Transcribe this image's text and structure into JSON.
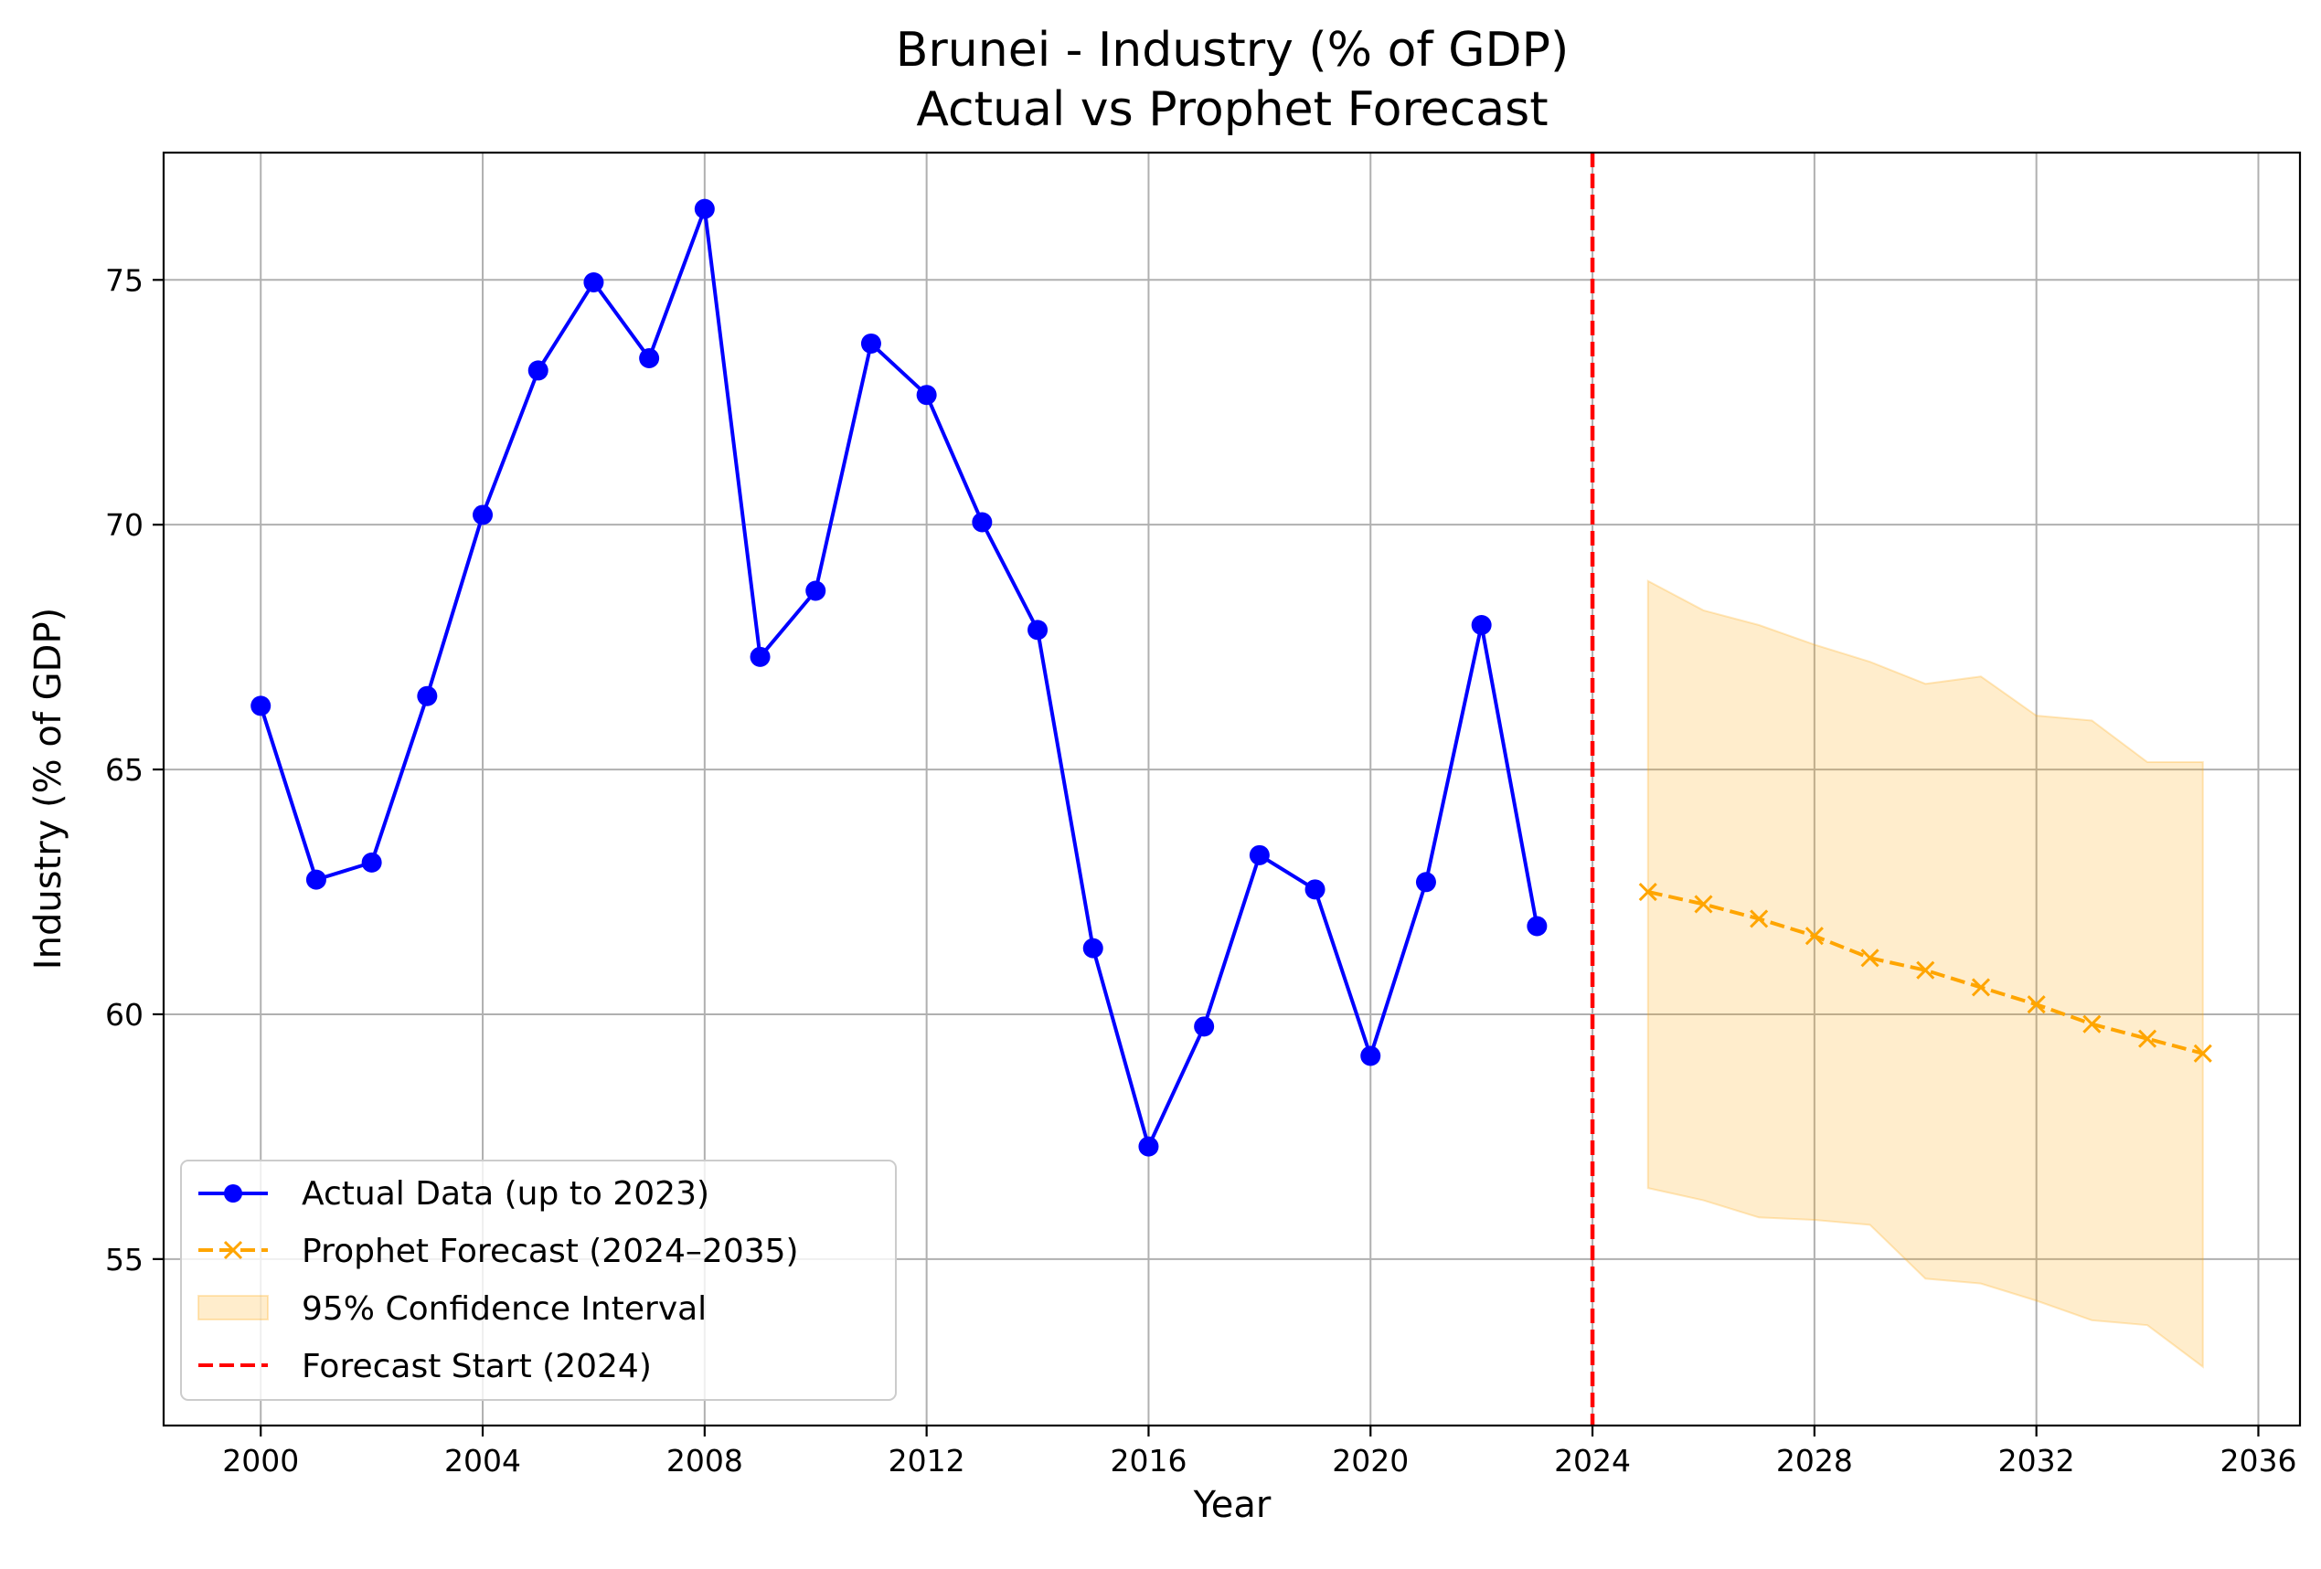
{
  "chart_data": {
    "type": "line",
    "title": "Brunei - Industry (% of GDP)",
    "subtitle": "Actual vs Prophet Forecast",
    "xlabel": "Year",
    "ylabel": "Industry (% of GDP)",
    "xlim": [
      1998.25,
      2036.75
    ],
    "ylim": [
      51.6,
      77.6
    ],
    "xticks": [
      2000,
      2004,
      2008,
      2012,
      2016,
      2020,
      2024,
      2028,
      2032,
      2036
    ],
    "yticks": [
      55,
      60,
      65,
      70,
      75
    ],
    "grid": true,
    "legend_position": "bottom-left",
    "series": [
      {
        "name": "Actual Data (up to 2023)",
        "color": "#0000ff",
        "style": "solid",
        "marker": "circle",
        "x": [
          2000,
          2001,
          2002,
          2003,
          2004,
          2005,
          2006,
          2007,
          2008,
          2009,
          2010,
          2011,
          2012,
          2013,
          2014,
          2015,
          2016,
          2017,
          2018,
          2019,
          2020,
          2021,
          2022,
          2023
        ],
        "y": [
          66.3,
          62.75,
          63.1,
          66.5,
          70.2,
          73.15,
          74.95,
          73.4,
          76.45,
          67.3,
          68.65,
          73.7,
          72.65,
          70.05,
          67.85,
          61.35,
          57.3,
          59.75,
          63.25,
          62.55,
          59.15,
          62.7,
          67.95,
          61.8
        ]
      },
      {
        "name": "Prophet Forecast (2024–2035)",
        "color": "#ffa500",
        "style": "dashed",
        "marker": "x",
        "x": [
          2025,
          2026,
          2027,
          2028,
          2029,
          2030,
          2031,
          2032,
          2033,
          2034,
          2035
        ],
        "y": [
          62.5,
          62.25,
          61.95,
          61.6,
          61.15,
          60.9,
          60.55,
          60.2,
          59.8,
          59.5,
          59.2
        ]
      }
    ],
    "confidence_interval": {
      "name": "95% Confidence Interval",
      "color": "#ffa500",
      "opacity": 0.2,
      "x": [
        2025,
        2026,
        2027,
        2028,
        2029,
        2030,
        2031,
        2032,
        2033,
        2034,
        2035
      ],
      "upper": [
        68.85,
        68.25,
        67.95,
        67.55,
        67.2,
        66.75,
        66.9,
        66.1,
        66.0,
        65.15,
        65.15
      ],
      "lower": [
        56.45,
        56.2,
        55.85,
        55.8,
        55.7,
        54.6,
        54.5,
        54.15,
        53.75,
        53.65,
        52.8
      ]
    },
    "reference_line": {
      "name": "Forecast Start (2024)",
      "x": 2024,
      "color": "#ff0000",
      "style": "dashed"
    }
  }
}
